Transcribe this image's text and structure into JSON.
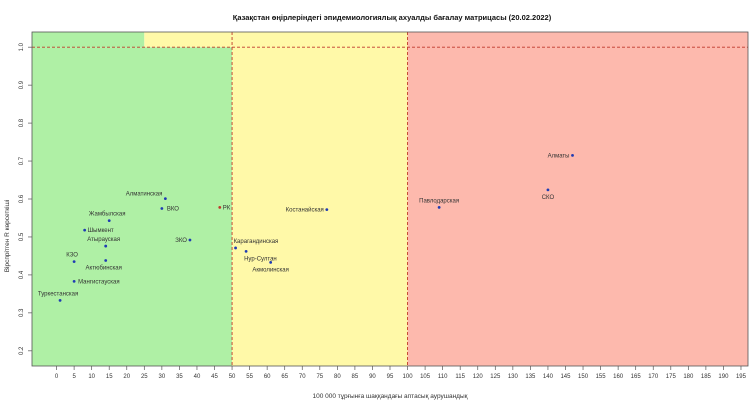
{
  "chart_data": {
    "type": "scatter",
    "title": "Қазақстан өңірлеріндегі эпидемиологиялық ахуалды бағалау матрицасы  (20.02.2022)",
    "xlabel": "100 000 тұрғынға шаққандағы аптасық аурушандық",
    "ylabel": "Вірспрітген R көрсеткіші",
    "xlim": [
      -7,
      197
    ],
    "ylim": [
      0.16,
      1.04
    ],
    "xticks": [
      0,
      5,
      10,
      15,
      20,
      25,
      30,
      35,
      40,
      45,
      50,
      55,
      60,
      65,
      70,
      75,
      80,
      85,
      90,
      95,
      100,
      105,
      110,
      115,
      120,
      125,
      130,
      135,
      140,
      145,
      150,
      155,
      160,
      165,
      170,
      175,
      180,
      185,
      190,
      195
    ],
    "yticks": [
      0.2,
      0.3,
      0.4,
      0.5,
      0.6,
      0.7,
      0.8,
      0.9,
      1.0
    ],
    "ytick_labels": [
      "0.2",
      "0.3",
      "0.4",
      "0.5",
      "0.6",
      "0.7",
      "0.8",
      "0.9",
      "1.0"
    ],
    "grid": false,
    "zones": [
      {
        "x": [
          -7,
          50
        ],
        "y": [
          0.16,
          1.0
        ],
        "color": "#aff0a5"
      },
      {
        "x": [
          -7,
          25
        ],
        "y": [
          1.0,
          1.04
        ],
        "color": "#aff0a5"
      },
      {
        "x": [
          25,
          50
        ],
        "y": [
          1.0,
          1.04
        ],
        "color": "#fff9a8"
      },
      {
        "x": [
          50,
          100
        ],
        "y": [
          0.16,
          1.04
        ],
        "color": "#fff9a8"
      },
      {
        "x": [
          100,
          197
        ],
        "y": [
          0.16,
          1.04
        ],
        "color": "#fdb9ad"
      }
    ],
    "threshold_lines": {
      "x": [
        50,
        100
      ],
      "y": [
        1.0
      ],
      "color": "#c0392b"
    },
    "points": [
      {
        "label": "Алматинская",
        "x": 31,
        "y": 0.601,
        "color": "#1f3bb3"
      },
      {
        "label": "ВКО",
        "x": 30,
        "y": 0.575,
        "color": "#1f3bb3"
      },
      {
        "label": "РК",
        "x": 46.5,
        "y": 0.578,
        "color": "#c0392b"
      },
      {
        "label": "Жамбылская",
        "x": 15,
        "y": 0.543,
        "color": "#1f3bb3"
      },
      {
        "label": "Шымкент",
        "x": 8,
        "y": 0.518,
        "color": "#1f3bb3"
      },
      {
        "label": "Атырауская",
        "x": 14,
        "y": 0.476,
        "color": "#1f3bb3"
      },
      {
        "label": "ЗКО",
        "x": 38,
        "y": 0.492,
        "color": "#1f3bb3"
      },
      {
        "label": "КЗО",
        "x": 5,
        "y": 0.435,
        "color": "#1f3bb3"
      },
      {
        "label": "Актюбинская",
        "x": 14,
        "y": 0.438,
        "color": "#1f3bb3"
      },
      {
        "label": "Мангистауская",
        "x": 5,
        "y": 0.383,
        "color": "#1f3bb3"
      },
      {
        "label": "Туркестанская",
        "x": 1,
        "y": 0.333,
        "color": "#1f3bb3"
      },
      {
        "label": "Костанайская",
        "x": 77,
        "y": 0.572,
        "color": "#1f3bb3"
      },
      {
        "label": "Карагандинская",
        "x": 51,
        "y": 0.471,
        "color": "#1f3bb3"
      },
      {
        "label": "Нур-Султан",
        "x": 54,
        "y": 0.462,
        "color": "#1f3bb3"
      },
      {
        "label": "Акмолинская",
        "x": 61,
        "y": 0.433,
        "color": "#1f3bb3"
      },
      {
        "label": "Павлодарская",
        "x": 109,
        "y": 0.578,
        "color": "#1f3bb3"
      },
      {
        "label": "Алматы",
        "x": 147,
        "y": 0.715,
        "color": "#1f3bb3"
      },
      {
        "label": "СКО",
        "x": 140,
        "y": 0.624,
        "color": "#1f3bb3"
      }
    ]
  }
}
